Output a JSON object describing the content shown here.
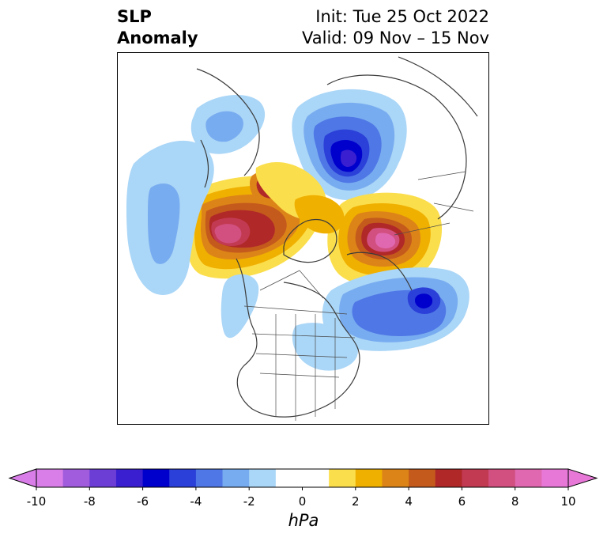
{
  "header": {
    "title_line1": "SLP",
    "title_line2": "Anomaly",
    "init_text": "Init: Tue 25 Oct 2022",
    "valid_text": "Valid: 09 Nov – 15 Nov"
  },
  "map": {
    "projection": "north-polar-stereographic",
    "field": "sea level pressure anomaly",
    "features": [
      "coastlines",
      "country borders",
      "US state borders",
      "Canadian province borders"
    ],
    "anomaly_centers": [
      {
        "region": "Eastern Siberia / Kamchatka",
        "sign": "negative",
        "approx_value": -6
      },
      {
        "region": "North Atlantic south of Greenland",
        "sign": "negative",
        "approx_value": -5
      },
      {
        "region": "Eastern Europe / Western Russia",
        "sign": "positive",
        "approx_value": 9
      },
      {
        "region": "Northern Alaska / Yukon",
        "sign": "positive",
        "approx_value": 9
      },
      {
        "region": "Arctic Ocean / Siberian coast",
        "sign": "positive",
        "approx_value": 6
      },
      {
        "region": "Gulf of Alaska / North Pacific",
        "sign": "negative",
        "approx_value": -3
      }
    ]
  },
  "colorbar": {
    "unit": "hPa",
    "ticks": [
      "-10",
      "-8",
      "-6",
      "-4",
      "-2",
      "0",
      "2",
      "4",
      "6",
      "8",
      "10"
    ],
    "extend": "both",
    "extend_min_color": "#d97ee8",
    "extend_max_color": "#e878d8",
    "colors": [
      "#d97ee8",
      "#a05cdc",
      "#6c3ed6",
      "#3a1fd0",
      "#0000cd",
      "#2b40d8",
      "#4f78e6",
      "#78acf0",
      "#aad6f7",
      "#ffffff",
      "#ffffff",
      "#fbde4c",
      "#f0b000",
      "#dc8418",
      "#c45a1c",
      "#b02828",
      "#c23a52",
      "#d25080",
      "#e068b0",
      "#e878d8"
    ]
  }
}
